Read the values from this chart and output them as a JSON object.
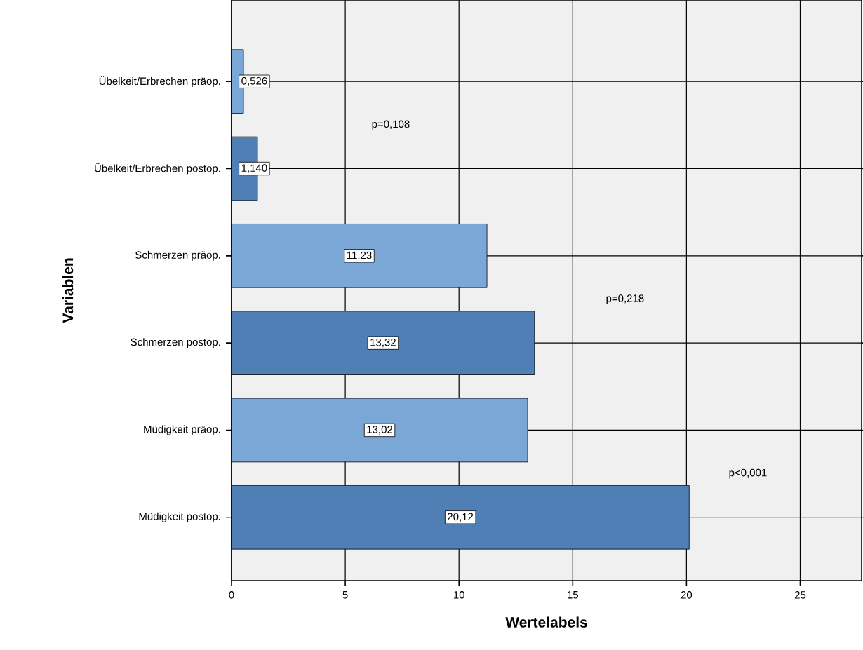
{
  "chart_data": {
    "type": "bar",
    "orientation": "horizontal",
    "xlabel": "Wertelabels",
    "ylabel": "Variablen",
    "categories": [
      "Übelkeit/Erbrechen präop.",
      "Übelkeit/Erbrechen postop.",
      "Schmerzen präop.",
      "Schmerzen postop.",
      "Müdigkeit präop.",
      "Müdigkeit postop."
    ],
    "values": [
      0.526,
      1.14,
      11.23,
      13.32,
      13.02,
      20.12
    ],
    "value_labels": [
      "0,526",
      "1,140",
      "11,23",
      "13,32",
      "13,02",
      "20,12"
    ],
    "colors": [
      "#7ba7d7",
      "#4f7fb5",
      "#7ba7d7",
      "#4f7fb5",
      "#7ba7d7",
      "#4f7fb5"
    ],
    "xlim": [
      0,
      27.7
    ],
    "xticks": [
      0,
      5,
      10,
      15,
      20,
      25
    ],
    "grid": true,
    "annotations": [
      "p=0,108",
      "p=0,218",
      "p<0,001"
    ]
  }
}
